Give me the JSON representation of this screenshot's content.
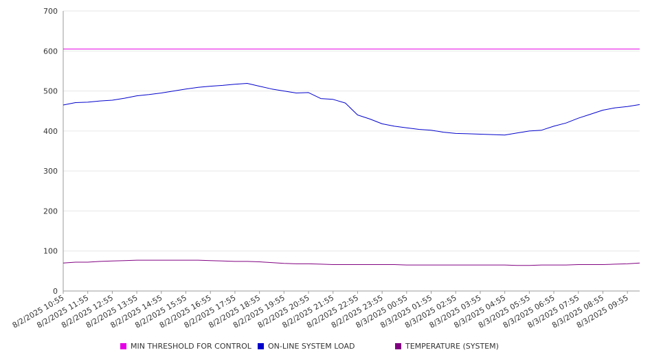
{
  "chart_data": {
    "type": "line",
    "title": "",
    "xlabel": "",
    "ylabel": "",
    "ylim": [
      0,
      700
    ],
    "yticks": [
      0,
      100,
      200,
      300,
      400,
      500,
      600,
      700
    ],
    "grid": true,
    "legend_position": "bottom",
    "x_tick_labels": [
      "8/2/2025 10:55",
      "8/2/2025 11:55",
      "8/2/2025 12:55",
      "8/2/2025 13:55",
      "8/2/2025 14:55",
      "8/2/2025 15:55",
      "8/2/2025 16:55",
      "8/2/2025 17:55",
      "8/2/2025 18:55",
      "8/2/2025 19:55",
      "8/2/2025 20:55",
      "8/2/2025 21:55",
      "8/2/2025 22:55",
      "8/2/2025 23:55",
      "8/3/2025 00:55",
      "8/3/2025 01:55",
      "8/3/2025 02:55",
      "8/3/2025 03:55",
      "8/3/2025 04:55",
      "8/3/2025 05:55",
      "8/3/2025 06:55",
      "8/3/2025 07:55",
      "8/3/2025 08:55",
      "8/3/2025 09:55"
    ],
    "x": [
      "8/2/2025 10:55",
      "8/2/2025 11:25",
      "8/2/2025 11:55",
      "8/2/2025 12:25",
      "8/2/2025 12:55",
      "8/2/2025 13:25",
      "8/2/2025 13:55",
      "8/2/2025 14:25",
      "8/2/2025 14:55",
      "8/2/2025 15:25",
      "8/2/2025 15:55",
      "8/2/2025 16:25",
      "8/2/2025 16:55",
      "8/2/2025 17:25",
      "8/2/2025 17:55",
      "8/2/2025 18:25",
      "8/2/2025 18:55",
      "8/2/2025 19:25",
      "8/2/2025 19:55",
      "8/2/2025 20:25",
      "8/2/2025 20:55",
      "8/2/2025 21:25",
      "8/2/2025 21:55",
      "8/2/2025 22:25",
      "8/2/2025 22:55",
      "8/2/2025 23:25",
      "8/2/2025 23:55",
      "8/3/2025 00:25",
      "8/3/2025 00:55",
      "8/3/2025 01:25",
      "8/3/2025 01:55",
      "8/3/2025 02:25",
      "8/3/2025 02:55",
      "8/3/2025 03:25",
      "8/3/2025 03:55",
      "8/3/2025 04:25",
      "8/3/2025 04:55",
      "8/3/2025 05:25",
      "8/3/2025 05:55",
      "8/3/2025 06:25",
      "8/3/2025 06:55",
      "8/3/2025 07:25",
      "8/3/2025 07:55",
      "8/3/2025 08:25",
      "8/3/2025 08:55",
      "8/3/2025 09:25",
      "8/3/2025 09:55",
      "8/3/2025 10:25"
    ],
    "series": [
      {
        "name": "MIN THRESHOLD FOR CONTROL",
        "color": "#e600e6",
        "values": [
          605,
          605,
          605,
          605,
          605,
          605,
          605,
          605,
          605,
          605,
          605,
          605,
          605,
          605,
          605,
          605,
          605,
          605,
          605,
          605,
          605,
          605,
          605,
          605,
          605,
          605,
          605,
          605,
          605,
          605,
          605,
          605,
          605,
          605,
          605,
          605,
          605,
          605,
          605,
          605,
          605,
          605,
          605,
          605,
          605,
          605,
          605,
          605
        ]
      },
      {
        "name": "ON-LINE SYSTEM LOAD",
        "color": "#0000cc",
        "values": [
          465,
          471,
          472,
          475,
          477,
          482,
          488,
          491,
          495,
          500,
          505,
          509,
          512,
          514,
          517,
          519,
          512,
          505,
          500,
          495,
          496,
          481,
          479,
          470,
          440,
          430,
          418,
          412,
          408,
          404,
          402,
          397,
          394,
          393,
          392,
          391,
          390,
          395,
          400,
          402,
          412,
          420,
          432,
          442,
          452,
          458,
          461,
          466
        ]
      },
      {
        "name": "TEMPERATURE (SYSTEM)",
        "color": "#800080",
        "values": [
          70,
          72,
          72,
          74,
          75,
          76,
          77,
          77,
          77,
          77,
          77,
          77,
          76,
          75,
          74,
          74,
          73,
          71,
          69,
          68,
          68,
          67,
          66,
          66,
          66,
          66,
          66,
          66,
          65,
          65,
          65,
          65,
          65,
          65,
          65,
          65,
          65,
          64,
          64,
          65,
          65,
          65,
          66,
          66,
          66,
          67,
          68,
          70
        ]
      }
    ]
  },
  "legend": {
    "item1": "MIN THRESHOLD FOR CONTROL",
    "item2": "ON-LINE SYSTEM LOAD",
    "item3": "TEMPERATURE (SYSTEM)"
  }
}
